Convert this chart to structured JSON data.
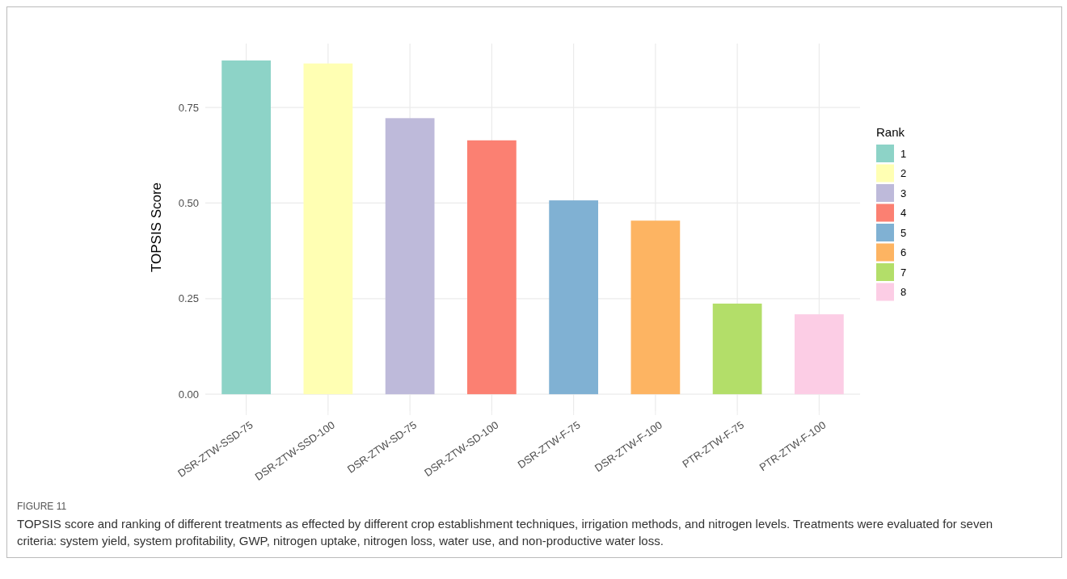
{
  "chart_data": {
    "type": "bar",
    "ylabel": "TOPSIS Score",
    "legend_title": "Rank",
    "legend": "right",
    "grid": true,
    "categories": [
      "DSR-ZTW-SSD-75",
      "DSR-ZTW-SSD-100",
      "DSR-ZTW-SD-75",
      "DSR-ZTW-SD-100",
      "DSR-ZTW-F-75",
      "DSR-ZTW-F-100",
      "PTR-ZTW-F-75",
      "PTR-ZTW-F-100"
    ],
    "series": [
      {
        "name": "1",
        "color": "#8dd3c7",
        "values": [
          0.873,
          null,
          null,
          null,
          null,
          null,
          null,
          null
        ]
      },
      {
        "name": "2",
        "color": "#ffffb3",
        "values": [
          null,
          0.865,
          null,
          null,
          null,
          null,
          null,
          null
        ]
      },
      {
        "name": "3",
        "color": "#bebada",
        "values": [
          null,
          null,
          0.722,
          null,
          null,
          null,
          null,
          null
        ]
      },
      {
        "name": "4",
        "color": "#fb8072",
        "values": [
          null,
          null,
          null,
          0.664,
          null,
          null,
          null,
          null
        ]
      },
      {
        "name": "5",
        "color": "#80b1d3",
        "values": [
          null,
          null,
          null,
          null,
          0.507,
          null,
          null,
          null
        ]
      },
      {
        "name": "6",
        "color": "#fdb462",
        "values": [
          null,
          null,
          null,
          null,
          null,
          0.454,
          null,
          null
        ]
      },
      {
        "name": "7",
        "color": "#b3de69",
        "values": [
          null,
          null,
          null,
          null,
          null,
          null,
          0.237,
          null
        ]
      },
      {
        "name": "8",
        "color": "#fccde5",
        "values": [
          null,
          null,
          null,
          null,
          null,
          null,
          null,
          0.209
        ]
      }
    ],
    "ylim": [
      -0.044,
      0.917
    ],
    "yticks": [
      {
        "value": 0,
        "label": "0.00"
      },
      {
        "value": 0.25,
        "label": "0.25"
      },
      {
        "value": 0.5,
        "label": "0.50"
      },
      {
        "value": 0.75,
        "label": "0.75"
      }
    ],
    "annotations": [
      "FIGURE 11",
      "TOPSIS score and ranking of different treatments as effected by different crop establishment techniques, irrigation methods, and nitrogen levels. Treatments were evaluated for seven criteria: system yield, system profitability, GWP, nitrogen uptake, nitrogen loss, water use, and non-productive water loss."
    ]
  }
}
